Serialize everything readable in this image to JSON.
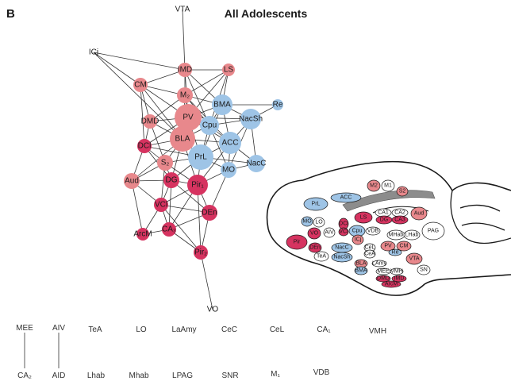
{
  "panel_label": "B",
  "title": "All Adolescents",
  "colors": {
    "blue": "#9ec4e6",
    "pink": "#e8888c",
    "red": "#d63360",
    "white": "#ffffff",
    "gray": "#8c8c8c",
    "edge": "#333333"
  },
  "network": {
    "nodes": [
      {
        "id": "VTA",
        "label": "VTA",
        "group": "white"
      },
      {
        "id": "ICj",
        "label": "ICj",
        "group": "white"
      },
      {
        "id": "IMD",
        "label": "IMD",
        "group": "pink"
      },
      {
        "id": "LS",
        "label": "LS",
        "group": "pink"
      },
      {
        "id": "CM",
        "label": "CM",
        "group": "pink"
      },
      {
        "id": "M2",
        "label": "M₂",
        "group": "pink"
      },
      {
        "id": "BMA",
        "label": "BMA",
        "group": "blue"
      },
      {
        "id": "Re",
        "label": "Re",
        "group": "blue"
      },
      {
        "id": "PV",
        "label": "PV",
        "group": "pink"
      },
      {
        "id": "NacSh",
        "label": "NacSh",
        "group": "blue"
      },
      {
        "id": "DMD",
        "label": "DMD",
        "group": "pink"
      },
      {
        "id": "Cpu",
        "label": "Cpu",
        "group": "blue"
      },
      {
        "id": "BLA",
        "label": "BLA",
        "group": "pink"
      },
      {
        "id": "ACC",
        "label": "ACC",
        "group": "blue"
      },
      {
        "id": "DCl",
        "label": "DCl",
        "group": "red"
      },
      {
        "id": "PrL",
        "label": "PrL",
        "group": "blue"
      },
      {
        "id": "NacC",
        "label": "NacC",
        "group": "blue"
      },
      {
        "id": "S2",
        "label": "S₂",
        "group": "pink"
      },
      {
        "id": "MO",
        "label": "MO",
        "group": "blue"
      },
      {
        "id": "Aud",
        "label": "Aud",
        "group": "pink"
      },
      {
        "id": "DG",
        "label": "DG",
        "group": "red"
      },
      {
        "id": "Pir1",
        "label": "Pir₁",
        "group": "red"
      },
      {
        "id": "VCl",
        "label": "VCl",
        "group": "red"
      },
      {
        "id": "DEn",
        "label": "DEn",
        "group": "red"
      },
      {
        "id": "ArcM",
        "label": "ArcM",
        "group": "red"
      },
      {
        "id": "CA3",
        "label": "CA₃",
        "group": "red"
      },
      {
        "id": "Pir2",
        "label": "Pir₂",
        "group": "red"
      },
      {
        "id": "VO",
        "label": "VO",
        "group": "white"
      }
    ],
    "edges": [
      [
        "VTA",
        "IMD"
      ],
      [
        "ICj",
        "CM"
      ],
      [
        "ICj",
        "BLA"
      ],
      [
        "ICj",
        "IMD"
      ],
      [
        "IMD",
        "CM"
      ],
      [
        "IMD",
        "M2"
      ],
      [
        "IMD",
        "PV"
      ],
      [
        "IMD",
        "Cpu"
      ],
      [
        "IMD",
        "LS"
      ],
      [
        "IMD",
        "BMA"
      ],
      [
        "LS",
        "M2"
      ],
      [
        "LS",
        "BMA"
      ],
      [
        "LS",
        "Cpu"
      ],
      [
        "LS",
        "PV"
      ],
      [
        "CM",
        "M2"
      ],
      [
        "CM",
        "DMD"
      ],
      [
        "CM",
        "PV"
      ],
      [
        "CM",
        "BLA"
      ],
      [
        "CM",
        "DCl"
      ],
      [
        "M2",
        "PV"
      ],
      [
        "M2",
        "BMA"
      ],
      [
        "M2",
        "DMD"
      ],
      [
        "M2",
        "Cpu"
      ],
      [
        "M2",
        "BLA"
      ],
      [
        "M2",
        "ACC"
      ],
      [
        "BMA",
        "Re"
      ],
      [
        "BMA",
        "NacSh"
      ],
      [
        "BMA",
        "Cpu"
      ],
      [
        "BMA",
        "PV"
      ],
      [
        "BMA",
        "ACC"
      ],
      [
        "BMA",
        "PrL"
      ],
      [
        "PV",
        "Cpu"
      ],
      [
        "PV",
        "DMD"
      ],
      [
        "PV",
        "BLA"
      ],
      [
        "PV",
        "NacSh"
      ],
      [
        "PV",
        "ACC"
      ],
      [
        "PV",
        "PrL"
      ],
      [
        "PV",
        "DCl"
      ],
      [
        "NacSh",
        "Cpu"
      ],
      [
        "NacSh",
        "ACC"
      ],
      [
        "NacSh",
        "NacC"
      ],
      [
        "NacSh",
        "MO"
      ],
      [
        "NacSh",
        "Re"
      ],
      [
        "DMD",
        "BLA"
      ],
      [
        "DMD",
        "DCl"
      ],
      [
        "DMD",
        "S2"
      ],
      [
        "Cpu",
        "BLA"
      ],
      [
        "Cpu",
        "ACC"
      ],
      [
        "Cpu",
        "PrL"
      ],
      [
        "Cpu",
        "MO"
      ],
      [
        "BLA",
        "DCl"
      ],
      [
        "BLA",
        "S2"
      ],
      [
        "BLA",
        "PrL"
      ],
      [
        "BLA",
        "ACC"
      ],
      [
        "BLA",
        "DG"
      ],
      [
        "BLA",
        "Pir1"
      ],
      [
        "BLA",
        "Aud"
      ],
      [
        "ACC",
        "PrL"
      ],
      [
        "ACC",
        "MO"
      ],
      [
        "ACC",
        "NacC"
      ],
      [
        "ACC",
        "Pir1"
      ],
      [
        "DCl",
        "S2"
      ],
      [
        "DCl",
        "Aud"
      ],
      [
        "DCl",
        "DG"
      ],
      [
        "DCl",
        "PrL"
      ],
      [
        "PrL",
        "MO"
      ],
      [
        "PrL",
        "S2"
      ],
      [
        "PrL",
        "DG"
      ],
      [
        "PrL",
        "Pir1"
      ],
      [
        "PrL",
        "NacC"
      ],
      [
        "MO",
        "NacC"
      ],
      [
        "MO",
        "Pir1"
      ],
      [
        "MO",
        "DEn"
      ],
      [
        "S2",
        "DG"
      ],
      [
        "S2",
        "Aud"
      ],
      [
        "S2",
        "VCl"
      ],
      [
        "S2",
        "Pir1"
      ],
      [
        "Aud",
        "DG"
      ],
      [
        "Aud",
        "VCl"
      ],
      [
        "Aud",
        "ArcM"
      ],
      [
        "DG",
        "Pir1"
      ],
      [
        "DG",
        "VCl"
      ],
      [
        "DG",
        "CA3"
      ],
      [
        "DG",
        "DEn"
      ],
      [
        "Pir1",
        "DEn"
      ],
      [
        "Pir1",
        "CA3"
      ],
      [
        "Pir1",
        "Pir2"
      ],
      [
        "Pir1",
        "VCl"
      ],
      [
        "VCl",
        "CA3"
      ],
      [
        "VCl",
        "ArcM"
      ],
      [
        "VCl",
        "DEn"
      ],
      [
        "VCl",
        "Pir2"
      ],
      [
        "DEn",
        "CA3"
      ],
      [
        "DEn",
        "Pir2"
      ],
      [
        "ArcM",
        "CA3"
      ],
      [
        "CA3",
        "Pir2"
      ],
      [
        "Pir2",
        "VO"
      ]
    ]
  },
  "brain_regions": [
    {
      "label": "PrL",
      "group": "blue"
    },
    {
      "label": "ACC",
      "group": "blue"
    },
    {
      "label": "M2",
      "group": "pink"
    },
    {
      "label": "M1",
      "group": "white"
    },
    {
      "label": "S2",
      "group": "pink"
    },
    {
      "label": "CA1",
      "group": "white"
    },
    {
      "label": "CA2",
      "group": "white"
    },
    {
      "label": "DG",
      "group": "red"
    },
    {
      "label": "CA3",
      "group": "red"
    },
    {
      "label": "Aud",
      "group": "pink"
    },
    {
      "label": "LS",
      "group": "red"
    },
    {
      "label": "MO",
      "group": "blue"
    },
    {
      "label": "LO",
      "group": "white"
    },
    {
      "label": "DCl",
      "group": "red"
    },
    {
      "label": "VCl",
      "group": "red"
    },
    {
      "label": "AIV",
      "group": "white"
    },
    {
      "label": "VO",
      "group": "red"
    },
    {
      "label": "Cpu",
      "group": "blue"
    },
    {
      "label": "VDB",
      "group": "white"
    },
    {
      "label": "MHab",
      "group": "white"
    },
    {
      "label": "LHab",
      "group": "white"
    },
    {
      "label": "PAG",
      "group": "white"
    },
    {
      "label": "NacC",
      "group": "blue"
    },
    {
      "label": "NacSh",
      "group": "blue"
    },
    {
      "label": "Pir",
      "group": "red"
    },
    {
      "label": "DEn",
      "group": "red"
    },
    {
      "label": "TeA",
      "group": "white"
    },
    {
      "label": "ICj",
      "group": "pink"
    },
    {
      "label": "CeL",
      "group": "white"
    },
    {
      "label": "CeA",
      "group": "white"
    },
    {
      "label": "PV",
      "group": "pink"
    },
    {
      "label": "CM",
      "group": "pink"
    },
    {
      "label": "Re",
      "group": "blue"
    },
    {
      "label": "BLA",
      "group": "pink"
    },
    {
      "label": "BMA",
      "group": "blue"
    },
    {
      "label": "LAmy",
      "group": "white"
    },
    {
      "label": "MEE",
      "group": "white"
    },
    {
      "label": "VMH",
      "group": "white"
    },
    {
      "label": "DMD",
      "group": "red"
    },
    {
      "label": "IMD",
      "group": "red"
    },
    {
      "label": "ArcM",
      "group": "red"
    },
    {
      "label": "VTA",
      "group": "pink"
    },
    {
      "label": "SN",
      "group": "white"
    }
  ],
  "unconnected": [
    {
      "id": "MEE",
      "label": "MEE"
    },
    {
      "id": "AIV",
      "label": "AIV"
    },
    {
      "id": "TeA",
      "label": "TeA"
    },
    {
      "id": "LO",
      "label": "LO"
    },
    {
      "id": "LaAmy",
      "label": "LaAmy"
    },
    {
      "id": "CeC",
      "label": "CeC"
    },
    {
      "id": "CeL",
      "label": "CeL"
    },
    {
      "id": "CA1",
      "label": "CA₁"
    },
    {
      "id": "VMH",
      "label": "VMH"
    },
    {
      "id": "CA2",
      "label": "CA₂"
    },
    {
      "id": "AID",
      "label": "AID"
    },
    {
      "id": "Lhab",
      "label": "Lhab"
    },
    {
      "id": "Mhab",
      "label": "Mhab"
    },
    {
      "id": "LPAG",
      "label": "LPAG"
    },
    {
      "id": "SNR",
      "label": "SNR"
    },
    {
      "id": "M1",
      "label": "M₁"
    },
    {
      "id": "VDB",
      "label": "VDB"
    }
  ],
  "unconnected_edges": [
    [
      "MEE",
      "CA2"
    ],
    [
      "AIV",
      "AID"
    ]
  ]
}
